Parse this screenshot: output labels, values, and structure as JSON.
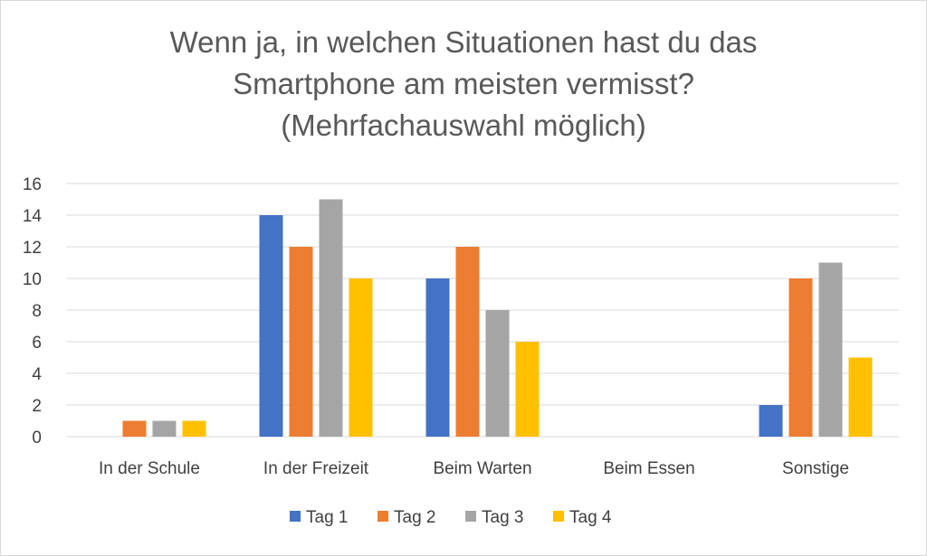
{
  "chart_data": {
    "type": "bar",
    "title_lines": [
      "Wenn ja, in welchen Situationen hast du das",
      "Smartphone am meisten vermisst?",
      "(Mehrfachauswahl möglich)"
    ],
    "categories": [
      "In der Schule",
      "In der Freizeit",
      "Beim Warten",
      "Beim Essen",
      "Sonstige"
    ],
    "series": [
      {
        "name": "Tag 1",
        "color": "#4472c4",
        "values": [
          0,
          14,
          10,
          0,
          2
        ]
      },
      {
        "name": "Tag 2",
        "color": "#ed7d31",
        "values": [
          1,
          12,
          12,
          0,
          10
        ]
      },
      {
        "name": "Tag 3",
        "color": "#a5a5a5",
        "values": [
          1,
          15,
          8,
          0,
          11
        ]
      },
      {
        "name": "Tag 4",
        "color": "#ffc000",
        "values": [
          1,
          10,
          6,
          0,
          5
        ]
      }
    ],
    "ylim": [
      0,
      16
    ],
    "yticks": [
      "0",
      "2",
      "4",
      "6",
      "8",
      "10",
      "12",
      "14",
      "16"
    ],
    "grid": true,
    "legend_position": "bottom",
    "xlabel": "",
    "ylabel": ""
  }
}
